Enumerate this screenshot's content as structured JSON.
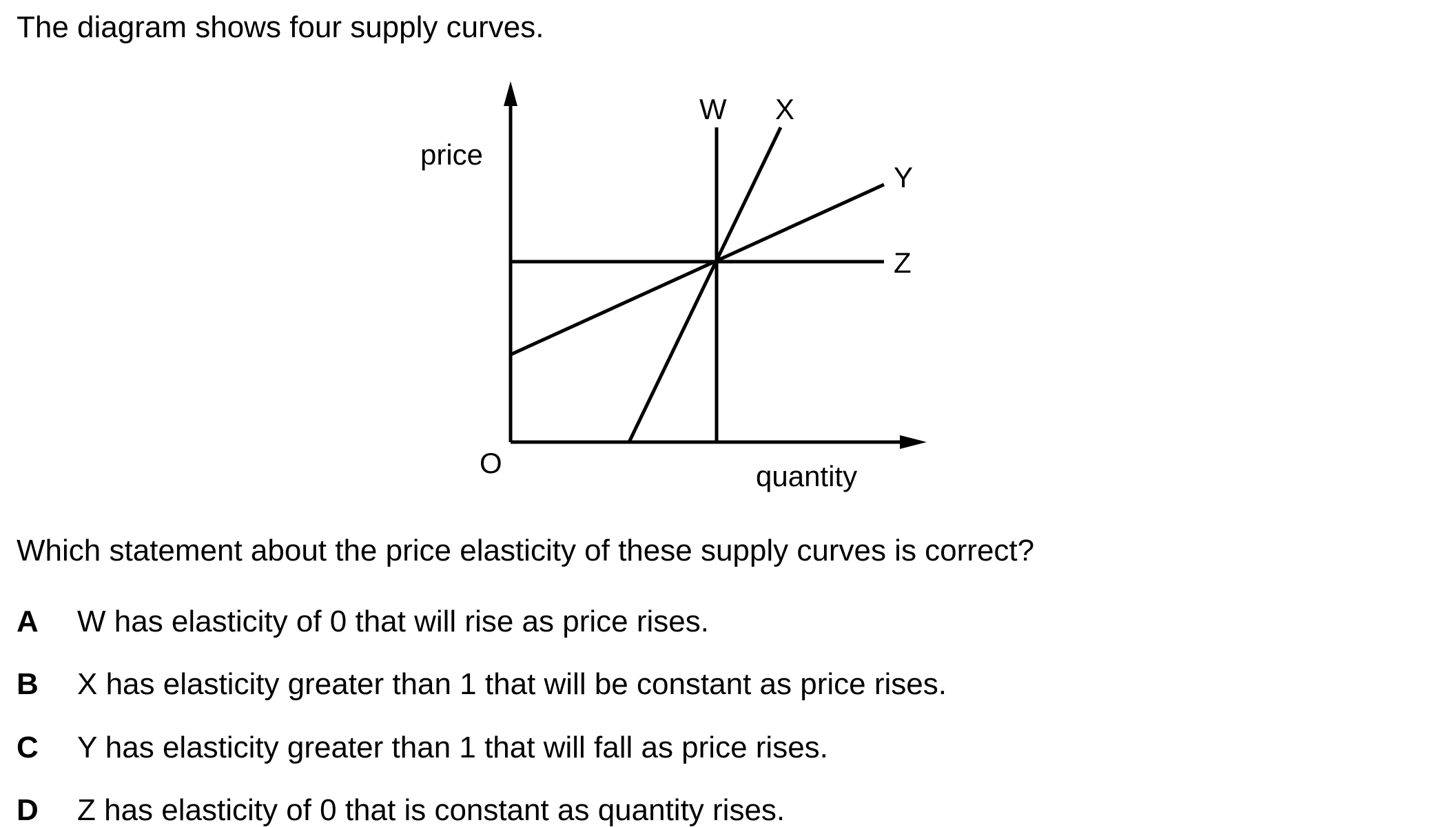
{
  "intro": "The diagram shows four supply curves.",
  "question": "Which statement about the price elasticity of these supply curves is correct?",
  "diagram": {
    "y_axis_label": "price",
    "x_axis_label": "quantity",
    "origin_label": "O",
    "curves": [
      {
        "label": "W"
      },
      {
        "label": "X"
      },
      {
        "label": "Y"
      },
      {
        "label": "Z"
      }
    ]
  },
  "options": [
    {
      "letter": "A",
      "text": "W has elasticity of 0 that will rise as price rises."
    },
    {
      "letter": "B",
      "text": "X has elasticity greater than 1 that will be constant as price rises."
    },
    {
      "letter": "C",
      "text": "Y has elasticity greater than 1 that will fall as price rises."
    },
    {
      "letter": "D",
      "text": "Z has elasticity of 0 that is constant as quantity rises."
    }
  ]
}
